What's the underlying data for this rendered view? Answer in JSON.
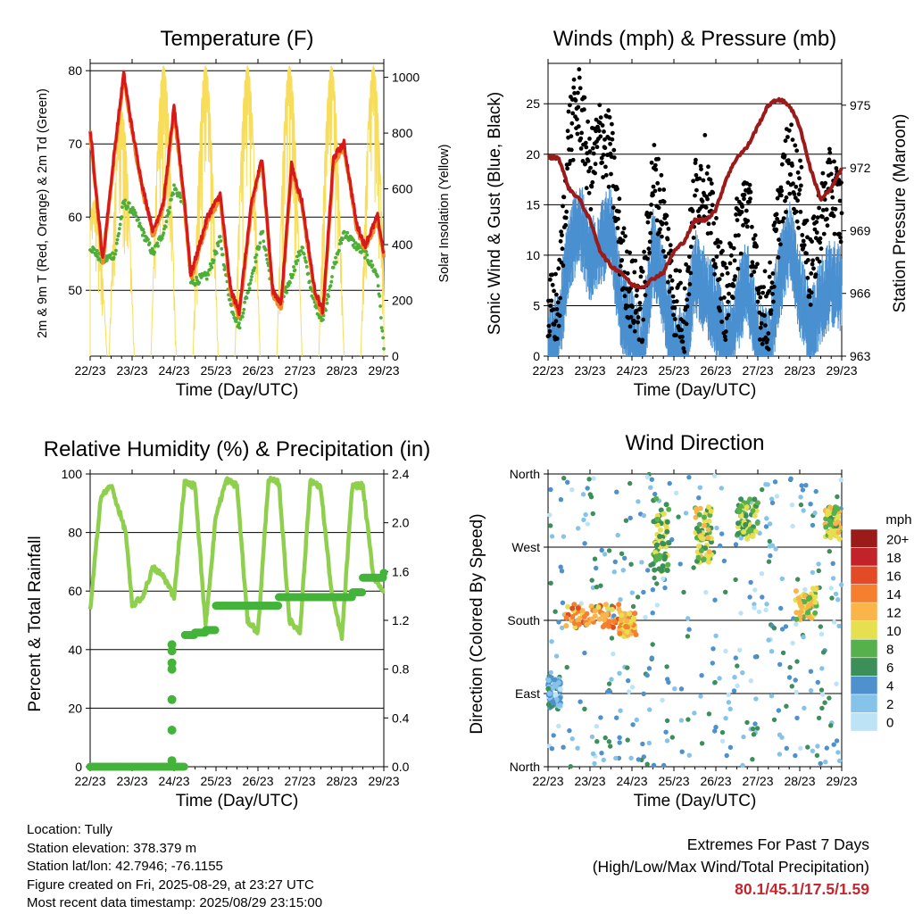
{
  "days": [
    "22/23",
    "23/23",
    "24/23",
    "25/23",
    "26/23",
    "27/23",
    "28/23",
    "29/23"
  ],
  "xlabel": "Time (Day/UTC)",
  "colors": {
    "temp_red": "#d7191c",
    "temp_orange": "#f28c28",
    "dewpoint_green": "#4daf3a",
    "solar_yellow": "#f7dd59",
    "wind_blue": "#4a90d0",
    "gust_black": "#000000",
    "pressure_maroon": "#9b1b1b",
    "rh_lightgreen": "#8fcf4e",
    "rain_green": "#44b33a",
    "extremes_red": "#c4262e"
  },
  "panels": {
    "temperature": {
      "title": "Temperature (F)",
      "ylabel_left": "2m & 9m T (Red, Orange) & 2m Td (Green)",
      "ylabel_right": "Solar Insolation (Yellow)",
      "left_ticks": [
        "50",
        "60",
        "70",
        "80"
      ],
      "right_ticks": [
        "0",
        "200",
        "400",
        "600",
        "800",
        "1000"
      ]
    },
    "wind": {
      "title": "Winds (mph) & Pressure (mb)",
      "ylabel_left": "Sonic Wind & Gust (Blue, Black)",
      "ylabel_right": "Station Pressure (Maroon)",
      "left_ticks": [
        "0",
        "5",
        "10",
        "15",
        "20",
        "25"
      ],
      "right_ticks": [
        "963",
        "966",
        "969",
        "972",
        "975"
      ]
    },
    "humidity": {
      "title": "Relative Humidity (%) & Precipitation (in)",
      "ylabel_left": "Percent & Total Rainfall",
      "left_ticks": [
        "0",
        "20",
        "40",
        "60",
        "80",
        "100"
      ],
      "right_ticks": [
        "0.0",
        "0.4",
        "0.8",
        "1.2",
        "1.6",
        "2.0",
        "2.4"
      ]
    },
    "direction": {
      "title": "Wind Direction",
      "ylabel_left": "Direction (Colored By Speed)",
      "left_ticks": [
        "North",
        "East",
        "South",
        "West",
        "North"
      ],
      "colorbar_title": "mph",
      "colorbar_labels": [
        "0",
        "2",
        "4",
        "6",
        "8",
        "10",
        "12",
        "14",
        "16",
        "18",
        "20+"
      ],
      "colorbar_colors": [
        "#bde3f6",
        "#86c3ea",
        "#4e91cd",
        "#3d8f5a",
        "#56b04c",
        "#e6e050",
        "#f9b44a",
        "#f57f2e",
        "#e34a26",
        "#c2232a",
        "#9b1b1b"
      ]
    }
  },
  "chart_data": [
    {
      "type": "line",
      "title": "Temperature (F)",
      "xlabel": "Time (Day/UTC)",
      "ylabel": "2m & 9m T (Red, Orange) & 2m Td (Green)",
      "ylim": [
        41,
        81
      ],
      "y2label": "Solar Insolation (Yellow)",
      "y2lim": [
        0,
        1050
      ],
      "x": [
        22.0,
        22.3,
        22.6,
        22.8,
        23.0,
        23.25,
        23.5,
        23.75,
        24.0,
        24.25,
        24.4,
        24.8,
        25.1,
        25.35,
        25.55,
        25.85,
        26.1,
        26.35,
        26.55,
        26.8,
        27.05,
        27.35,
        27.55,
        27.8,
        28.05,
        28.35,
        28.55,
        28.85,
        29.0
      ],
      "series": [
        {
          "name": "2m T",
          "values": [
            72,
            54,
            70,
            79.5,
            72,
            64,
            58,
            62,
            75,
            62,
            52,
            60,
            63,
            50,
            47,
            62,
            68,
            50,
            48,
            67,
            62,
            50,
            47,
            68,
            70,
            59,
            56,
            60,
            55
          ]
        },
        {
          "name": "2m Td",
          "values": [
            56,
            54,
            55,
            62,
            61,
            58,
            55,
            58,
            64,
            62,
            51,
            52,
            57,
            48,
            45,
            52,
            58,
            50,
            48,
            52,
            56,
            48,
            46,
            53,
            58,
            56,
            55,
            52,
            42
          ]
        },
        {
          "name": "Solar Insolation",
          "x_peaks": [
            22.1,
            22.75,
            23.75,
            24.75,
            25.75,
            26.75,
            27.75,
            28.75
          ],
          "peak_values": [
            560,
            880,
            1040,
            1040,
            1040,
            1040,
            1040,
            1040
          ]
        }
      ]
    },
    {
      "type": "line",
      "title": "Winds (mph) & Pressure (mb)",
      "xlabel": "Time (Day/UTC)",
      "ylabel": "Sonic Wind & Gust (Blue, Black)",
      "ylim": [
        0,
        29
      ],
      "y2label": "Station Pressure (Maroon)",
      "y2lim": [
        963,
        977
      ],
      "x": [
        22.0,
        22.25,
        22.5,
        22.75,
        23.0,
        23.25,
        23.5,
        23.75,
        24.0,
        24.25,
        24.5,
        24.75,
        25.0,
        25.25,
        25.5,
        25.75,
        26.0,
        26.25,
        26.5,
        26.75,
        27.0,
        27.25,
        27.5,
        27.75,
        28.0,
        28.25,
        28.5,
        28.75,
        29.0
      ],
      "series": [
        {
          "name": "Sonic Wind",
          "values": [
            2,
            4,
            12,
            15,
            11,
            13,
            14,
            6,
            4,
            2,
            12,
            8,
            3,
            2,
            10,
            8,
            6,
            2,
            6,
            9,
            3,
            2,
            9,
            13,
            8,
            4,
            7,
            9,
            8
          ]
        },
        {
          "name": "Gust",
          "values": [
            4,
            5,
            22,
            25,
            18,
            22,
            20,
            10,
            6,
            5,
            18,
            14,
            6,
            4,
            16,
            18,
            10,
            5,
            12,
            16,
            6,
            4,
            14,
            20,
            16,
            8,
            14,
            17,
            14
          ]
        },
        {
          "name": "Station Pressure",
          "values": [
            972.5,
            972.5,
            971,
            970.5,
            969.5,
            968,
            967.3,
            967,
            966.4,
            966.3,
            966.7,
            967,
            968,
            968.5,
            969.5,
            969.5,
            970,
            971.5,
            972.5,
            973,
            974,
            975,
            975.3,
            975,
            974,
            972,
            970.5,
            971,
            972
          ]
        }
      ]
    },
    {
      "type": "line",
      "title": "Relative Humidity (%) & Precipitation (in)",
      "xlabel": "Time (Day/UTC)",
      "ylabel": "Percent & Total Rainfall",
      "ylim": [
        0,
        100
      ],
      "y2lim": [
        0,
        2.4
      ],
      "x": [
        22.0,
        22.25,
        22.5,
        22.85,
        23.0,
        23.25,
        23.5,
        23.75,
        24.0,
        24.25,
        24.5,
        24.75,
        25.0,
        25.25,
        25.5,
        25.75,
        26.0,
        26.25,
        26.5,
        26.75,
        27.0,
        27.25,
        27.5,
        27.75,
        28.0,
        28.25,
        28.5,
        28.75,
        29.0
      ],
      "series": [
        {
          "name": "Relative Humidity",
          "values": [
            53,
            92,
            96,
            80,
            55,
            58,
            68,
            65,
            58,
            97,
            96,
            48,
            86,
            98,
            96,
            50,
            46,
            98,
            97,
            50,
            46,
            98,
            95,
            60,
            44,
            96,
            96,
            65,
            60
          ]
        },
        {
          "name": "Total Rainfall",
          "values": [
            0.0,
            0.0,
            0.0,
            0.0,
            0.0,
            0.0,
            0.0,
            0.0,
            0.0,
            1.08,
            1.1,
            1.12,
            1.32,
            1.32,
            1.32,
            1.32,
            1.32,
            1.32,
            1.39,
            1.39,
            1.39,
            1.39,
            1.39,
            1.39,
            1.39,
            1.43,
            1.55,
            1.55,
            1.59
          ]
        }
      ]
    },
    {
      "type": "scatter",
      "title": "Wind Direction",
      "xlabel": "Time (Day/UTC)",
      "ylabel": "Direction (Colored By Speed)",
      "y_categories": [
        "North",
        "East",
        "South",
        "West",
        "North"
      ],
      "colorbar": {
        "title": "mph",
        "labels": [
          "0",
          "2",
          "4",
          "6",
          "8",
          "10",
          "12",
          "14",
          "16",
          "18",
          "20+"
        ]
      },
      "clusters": [
        {
          "x_range": [
            22.0,
            22.3
          ],
          "dir_range": [
            70,
            110
          ],
          "speed": 3
        },
        {
          "x_range": [
            22.4,
            23.7
          ],
          "dir_range": [
            170,
            200
          ],
          "speed": 13
        },
        {
          "x_range": [
            23.7,
            24.1
          ],
          "dir_range": [
            160,
            190
          ],
          "speed": 12
        },
        {
          "x_range": [
            24.5,
            24.9
          ],
          "dir_range": [
            240,
            330
          ],
          "speed": 8
        },
        {
          "x_range": [
            25.5,
            25.9
          ],
          "dir_range": [
            250,
            320
          ],
          "speed": 9
        },
        {
          "x_range": [
            26.5,
            27.0
          ],
          "dir_range": [
            280,
            330
          ],
          "speed": 8
        },
        {
          "x_range": [
            27.9,
            28.4
          ],
          "dir_range": [
            180,
            220
          ],
          "speed": 10
        },
        {
          "x_range": [
            28.6,
            28.95
          ],
          "dir_range": [
            280,
            320
          ],
          "speed": 9
        }
      ]
    }
  ],
  "info": {
    "location": "Location: Tully",
    "elevation": "Station elevation: 378.379 m",
    "latlon": "Station lat/lon: 42.7946; -76.1155",
    "created": "Figure created on Fri, 2025-08-29, at 23:27 UTC",
    "recent": "Most recent data timestamp: 2025/08/29 23:15:00"
  },
  "extremes": {
    "title": "Extremes For Past 7 Days",
    "subtitle": "(High/Low/Max Wind/Total Precipitation)",
    "values": "80.1/45.1/17.5/1.59"
  }
}
